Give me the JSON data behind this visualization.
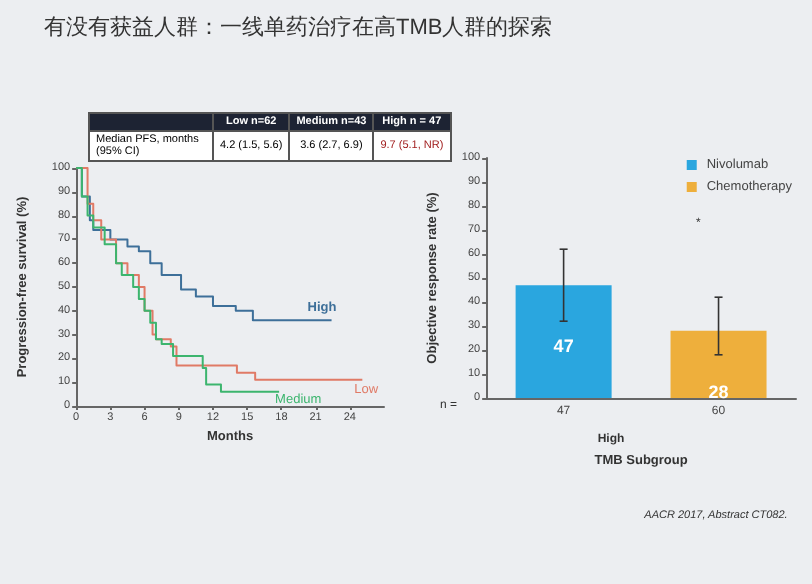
{
  "chart_data": [
    {
      "type": "step",
      "title": "有没有获益人群：一线单药治疗在高TMB人群的探索",
      "xlabel": "Months",
      "ylabel": "Progression-free survival (%)",
      "annotations": [
        "Low n=62",
        "Medium n=43",
        "High n = 47",
        "Median PFS, months (95% CI)",
        "4.2 (1.5, 5.6)",
        "3.6 (2.7, 6.9)",
        "9.7 (5.1, NR)"
      ],
      "series": [
        {
          "name": "High",
          "color": "#3d6f99",
          "x": [
            0,
            0.5,
            1.2,
            1.5,
            3,
            4.5,
            5.5,
            6.5,
            7.5,
            9.2,
            10.5,
            12,
            14,
            15.5,
            22.4
          ],
          "values": [
            100,
            88,
            78,
            74,
            70,
            67,
            65,
            60,
            55,
            49,
            46,
            42,
            40,
            36,
            36
          ]
        },
        {
          "name": "Low",
          "color": "#e07a66",
          "x": [
            0,
            1,
            1.5,
            2.2,
            3.5,
            4.5,
            5.5,
            6,
            6.7,
            7,
            8.3,
            8.8,
            14.1,
            15.7,
            25.1
          ],
          "values": [
            100,
            85,
            78,
            70,
            60,
            55,
            50,
            40,
            30,
            28,
            25,
            17,
            14,
            11,
            11
          ]
        },
        {
          "name": "Medium",
          "color": "#3cb56e",
          "x": [
            0,
            0.5,
            1,
            1.5,
            2.5,
            3.5,
            4,
            5,
            5.5,
            6,
            6.5,
            7,
            7.5,
            8.5,
            11.1,
            11.4,
            12.7,
            17.8
          ],
          "values": [
            100,
            88,
            80,
            75,
            68,
            60,
            55,
            50,
            45,
            40,
            35,
            28,
            26,
            21,
            16,
            9,
            6,
            6
          ]
        }
      ],
      "xlim": [
        0,
        27
      ],
      "xticks": [
        0,
        3,
        6,
        9,
        12,
        15,
        18,
        21,
        24
      ],
      "ylim": [
        0,
        100
      ],
      "yticks": [
        0,
        10,
        20,
        30,
        40,
        50,
        60,
        70,
        80,
        90,
        100
      ],
      "grid": false,
      "legend": false
    },
    {
      "type": "bar",
      "xlabel": "TMB Subgroup",
      "ylabel": "Objective response rate (%)",
      "categories": [
        "47",
        "60"
      ],
      "annotations": [
        "n =",
        "High",
        "*",
        "AACR 2017, Abstract CT082."
      ],
      "series": [
        {
          "name": "Nivolumab",
          "color": "#2aa6df",
          "values": [
            47,
            null
          ],
          "errors": [
            [
              32,
              62
            ],
            null
          ]
        },
        {
          "name": "Chemotherapy",
          "color": "#eeaf3c",
          "values": [
            null,
            28
          ],
          "errors": [
            null,
            [
              18,
              42
            ]
          ]
        }
      ],
      "ylim": [
        0,
        100
      ],
      "yticks": [
        0,
        10,
        20,
        30,
        40,
        50,
        60,
        70,
        80,
        90,
        100
      ],
      "data_labels": true,
      "grid": false,
      "legend": "top right"
    }
  ]
}
